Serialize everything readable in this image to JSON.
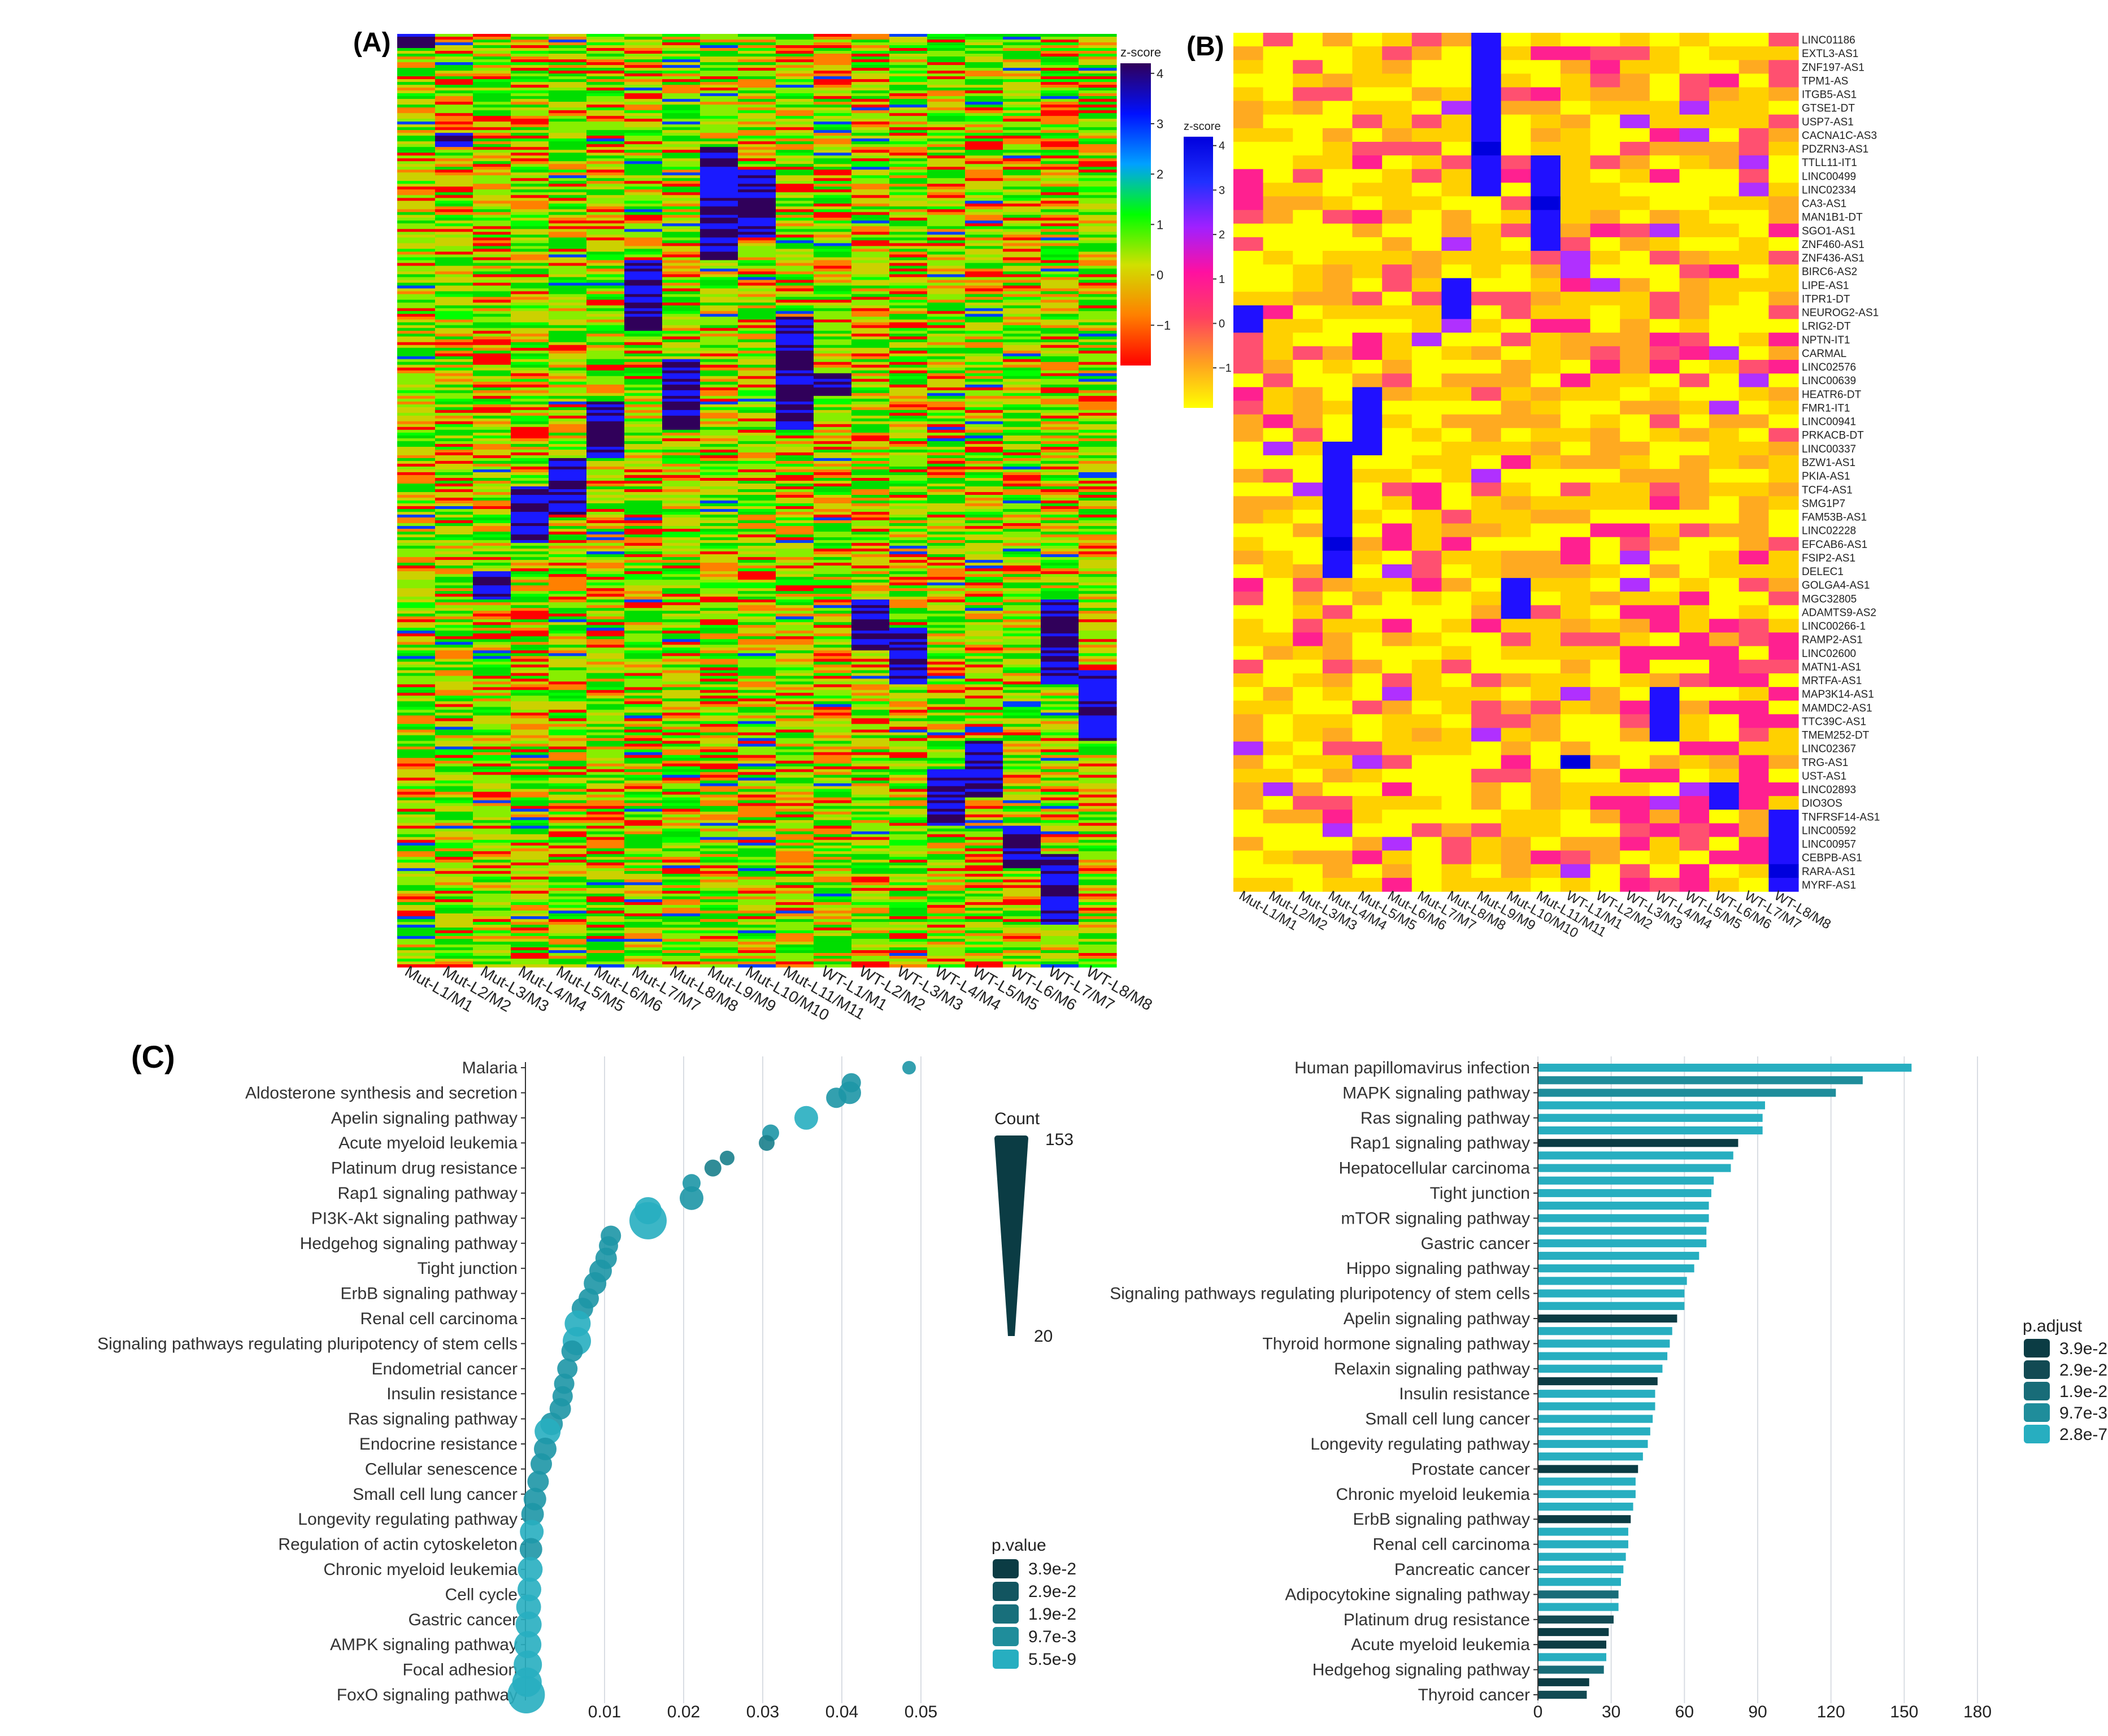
{
  "panels": {
    "a": "(A)",
    "b": "(B)",
    "c": "(C)"
  },
  "colors": {
    "heatA": [
      "#ff0000",
      "#ff8000",
      "#ccd100",
      "#88ee00",
      "#00dd00",
      "#00ff00",
      "#0040ff",
      "#1a1aff",
      "#30005a"
    ],
    "heatB": [
      "#ffff00",
      "#ffd000",
      "#ffaa20",
      "#ff5070",
      "#ff2090",
      "#b030ff",
      "#2010ff",
      "#0000dd"
    ],
    "teal_dark": "#0b3c44",
    "teal_mid": "#1d7f8c",
    "teal_light": "#27aec0"
  },
  "chart_data": [
    {
      "type": "heatmap",
      "panel": "A",
      "title": "",
      "columns": [
        "Mut-L1/M1",
        "Mut-L2/M2",
        "Mut-L3/M3",
        "Mut-L4/M4",
        "Mut-L5/M5",
        "Mut-L6/M6",
        "Mut-L7/M7",
        "Mut-L8/M8",
        "Mut-L9/M9",
        "Mut-L10/M10",
        "Mut-L11/M11",
        "WT-L1/M1",
        "WT-L2/M2",
        "WT-L3/M3",
        "WT-L4/M4",
        "WT-L5/M5",
        "WT-L6/M6",
        "WT-L7/M7",
        "WT-L8/M8"
      ],
      "colorbar": {
        "title": "z-score",
        "ticks": [
          4,
          3,
          2,
          1,
          0,
          -1
        ],
        "range": [
          -1.8,
          4.2
        ]
      }
    },
    {
      "type": "heatmap",
      "panel": "B",
      "columns": [
        "Mut-L1/M1",
        "Mut-L2/M2",
        "Mut-L3/M3",
        "Mut-L4/M4",
        "Mut-L5/M5",
        "Mut-L6/M6",
        "Mut-L7/M7",
        "Mut-L8/M8",
        "Mut-L9/M9",
        "Mut-L10/M10",
        "Mut-L11/M11",
        "WT-L1/M1",
        "WT-L2/M2",
        "WT-L3/M3",
        "WT-L4/M4",
        "WT-L5/M5",
        "WT-L6/M6",
        "WT-L7/M7",
        "WT-L8/M8"
      ],
      "rows": [
        "LINC01186",
        "EXTL3-AS1",
        "ZNF197-AS1",
        "TPM1-AS",
        "ITGB5-AS1",
        "GTSE1-DT",
        "USP7-AS1",
        "CACNA1C-AS3",
        "PDZRN3-AS1",
        "TTLL11-IT1",
        "LINC00499",
        "LINC02334",
        "CA3-AS1",
        "MAN1B1-DT",
        "SGO1-AS1",
        "ZNF460-AS1",
        "ZNF436-AS1",
        "BIRC6-AS2",
        "LIPE-AS1",
        "ITPR1-DT",
        "NEUROG2-AS1",
        "LRIG2-DT",
        "NPTN-IT1",
        "CARMAL",
        "LINC02576",
        "LINC00639",
        "HEATR6-DT",
        "FMR1-IT1",
        "LINC00941",
        "PRKACB-DT",
        "LINC00337",
        "BZW1-AS1",
        "PKIA-AS1",
        "TCF4-AS1",
        "SMG1P7",
        "FAM53B-AS1",
        "LINC02228",
        "EFCAB6-AS1",
        "FSIP2-AS1",
        "DELEC1",
        "GOLGA4-AS1",
        "MGC32805",
        "ADAMTS9-AS2",
        "LINC00266-1",
        "RAMP2-AS1",
        "LINC02600",
        "MATN1-AS1",
        "MRTFA-AS1",
        "MAP3K14-AS1",
        "MAMDC2-AS1",
        "TTC39C-AS1",
        "TMEM252-DT",
        "LINC02367",
        "TRG-AS1",
        "UST-AS1",
        "LINC02893",
        "DIO3OS",
        "TNFRSF14-AS1",
        "LINC00592",
        "LINC00957",
        "CEBPB-AS1",
        "RARA-AS1",
        "MYRF-AS1"
      ],
      "colorbar": {
        "title": "z-score",
        "ticks": [
          4,
          3,
          2,
          1,
          0,
          -1
        ],
        "range": [
          -1.9,
          4.2
        ]
      }
    },
    {
      "type": "scatter",
      "panel": "C-left",
      "categories": [
        "Malaria",
        "Aldosterone synthesis and secretion",
        "Apelin signaling pathway",
        "Acute myeloid leukemia",
        "Platinum drug resistance",
        "Rap1 signaling pathway",
        "PI3K-Akt signaling pathway",
        "Hedgehog signaling pathway",
        "Tight junction",
        "ErbB signaling pathway",
        "Renal cell carcinoma",
        "Signaling pathways regulating pluripotency of stem cells",
        "Endometrial cancer",
        "Insulin resistance",
        "Ras signaling pathway",
        "Endocrine resistance",
        "Cellular senescence",
        "Small cell lung cancer",
        "Longevity regulating pathway",
        "Regulation of actin cytoskeleton",
        "Chronic myeloid leukemia",
        "Cell cycle",
        "Gastric cancer",
        "AMPK signaling pathway",
        "Focal adhesion",
        "FoxO signaling pathway"
      ],
      "x_ticks": [
        0.01,
        0.02,
        0.03,
        0.04,
        0.05
      ],
      "xlim": [
        0,
        0.06
      ],
      "points": [
        {
          "x": 0.0485,
          "y": 0.0,
          "size": 24,
          "p": 0.012
        },
        {
          "x": 0.0412,
          "y": 0.6,
          "size": 34,
          "p": 0.009
        },
        {
          "x": 0.041,
          "y": 1.0,
          "size": 40,
          "p": 0.008
        },
        {
          "x": 0.0393,
          "y": 1.2,
          "size": 36,
          "p": 0.01
        },
        {
          "x": 0.0355,
          "y": 2.0,
          "size": 42,
          "p": 0.007
        },
        {
          "x": 0.031,
          "y": 2.6,
          "size": 30,
          "p": 0.015
        },
        {
          "x": 0.0305,
          "y": 3.0,
          "size": 28,
          "p": 0.016
        },
        {
          "x": 0.0255,
          "y": 3.6,
          "size": 26,
          "p": 0.02
        },
        {
          "x": 0.0237,
          "y": 4.0,
          "size": 30,
          "p": 0.018
        },
        {
          "x": 0.021,
          "y": 4.6,
          "size": 32,
          "p": 0.015
        },
        {
          "x": 0.021,
          "y": 5.2,
          "size": 42,
          "p": 0.009
        },
        {
          "x": 0.0155,
          "y": 5.7,
          "size": 48,
          "p": 0.006
        },
        {
          "x": 0.0155,
          "y": 6.1,
          "size": 66,
          "p": 0.001
        },
        {
          "x": 0.0108,
          "y": 6.7,
          "size": 36,
          "p": 0.012
        },
        {
          "x": 0.0105,
          "y": 7.1,
          "size": 34,
          "p": 0.012
        },
        {
          "x": 0.0102,
          "y": 7.6,
          "size": 38,
          "p": 0.011
        },
        {
          "x": 0.0095,
          "y": 8.1,
          "size": 40,
          "p": 0.01
        },
        {
          "x": 0.0088,
          "y": 8.6,
          "size": 40,
          "p": 0.009
        },
        {
          "x": 0.008,
          "y": 9.2,
          "size": 36,
          "p": 0.011
        },
        {
          "x": 0.0072,
          "y": 9.6,
          "size": 38,
          "p": 0.01
        },
        {
          "x": 0.0066,
          "y": 10.2,
          "size": 46,
          "p": 0.005
        },
        {
          "x": 0.0065,
          "y": 10.9,
          "size": 50,
          "p": 0.004
        },
        {
          "x": 0.0059,
          "y": 11.3,
          "size": 38,
          "p": 0.009
        },
        {
          "x": 0.0053,
          "y": 12.0,
          "size": 36,
          "p": 0.01
        },
        {
          "x": 0.0049,
          "y": 12.6,
          "size": 36,
          "p": 0.01
        },
        {
          "x": 0.0047,
          "y": 13.1,
          "size": 36,
          "p": 0.01
        },
        {
          "x": 0.0044,
          "y": 13.6,
          "size": 38,
          "p": 0.009
        },
        {
          "x": 0.0033,
          "y": 14.2,
          "size": 40,
          "p": 0.008
        },
        {
          "x": 0.0028,
          "y": 14.5,
          "size": 46,
          "p": 0.006
        },
        {
          "x": 0.0025,
          "y": 15.2,
          "size": 40,
          "p": 0.008
        },
        {
          "x": 0.002,
          "y": 15.8,
          "size": 38,
          "p": 0.009
        },
        {
          "x": 0.0016,
          "y": 16.5,
          "size": 38,
          "p": 0.009
        },
        {
          "x": 0.0012,
          "y": 17.2,
          "size": 40,
          "p": 0.008
        },
        {
          "x": 0.0009,
          "y": 17.8,
          "size": 40,
          "p": 0.008
        },
        {
          "x": 0.0008,
          "y": 18.5,
          "size": 42,
          "p": 0.007
        },
        {
          "x": 0.0007,
          "y": 19.2,
          "size": 40,
          "p": 0.008
        },
        {
          "x": 0.0006,
          "y": 20.0,
          "size": 44,
          "p": 0.006
        },
        {
          "x": 0.0005,
          "y": 20.8,
          "size": 42,
          "p": 0.007
        },
        {
          "x": 0.0004,
          "y": 21.5,
          "size": 44,
          "p": 0.006
        },
        {
          "x": 0.0004,
          "y": 22.2,
          "size": 46,
          "p": 0.005
        },
        {
          "x": 0.0003,
          "y": 23.0,
          "size": 48,
          "p": 0.005
        },
        {
          "x": 0.0003,
          "y": 23.8,
          "size": 50,
          "p": 0.004
        },
        {
          "x": 0.0002,
          "y": 24.5,
          "size": 52,
          "p": 0.003
        },
        {
          "x": 0.0001,
          "y": 25.0,
          "size": 66,
          "p": 0.0005
        }
      ],
      "legend_count": {
        "title": "Count",
        "max": "153",
        "min": "20"
      },
      "legend_p": {
        "title": "p.value",
        "items": [
          "3.9e-2",
          "2.9e-2",
          "1.9e-2",
          "9.7e-3",
          "5.5e-9"
        ]
      }
    },
    {
      "type": "bar",
      "panel": "C-right",
      "orientation": "horizontal",
      "categories": [
        "Human papillomavirus infection",
        "MAPK signaling pathway",
        "Ras signaling pathway",
        "Rap1 signaling pathway",
        "Hepatocellular carcinoma",
        "Tight junction",
        "mTOR signaling pathway",
        "Gastric cancer",
        "Hippo signaling pathway",
        "Signaling pathways regulating pluripotency of stem cells",
        "Apelin signaling pathway",
        "Thyroid hormone signaling pathway",
        "Relaxin signaling pathway",
        "Insulin resistance",
        "Small cell lung cancer",
        "Longevity regulating pathway",
        "Prostate cancer",
        "Chronic myeloid leukemia",
        "ErbB signaling pathway",
        "Renal cell carcinoma",
        "Pancreatic cancer",
        "Adipocytokine signaling pathway",
        "Platinum drug resistance",
        "Acute myeloid leukemia",
        "Hedgehog signaling pathway",
        "Thyroid cancer"
      ],
      "bars": [
        {
          "value": 153,
          "p": 0.0
        },
        {
          "value": 133,
          "p": 0.01
        },
        {
          "value": 122,
          "p": 0.005
        },
        {
          "value": 93,
          "p": 0.0
        },
        {
          "value": 92,
          "p": 0.0
        },
        {
          "value": 92,
          "p": 0.0
        },
        {
          "value": 82,
          "p": 0.039
        },
        {
          "value": 80,
          "p": 0.0
        },
        {
          "value": 79,
          "p": 0.0
        },
        {
          "value": 72,
          "p": 0.0
        },
        {
          "value": 71,
          "p": 0.0
        },
        {
          "value": 70,
          "p": 0.0
        },
        {
          "value": 70,
          "p": 0.0
        },
        {
          "value": 69,
          "p": 0.0
        },
        {
          "value": 69,
          "p": 0.0
        },
        {
          "value": 66,
          "p": 0.0
        },
        {
          "value": 64,
          "p": 0.0
        },
        {
          "value": 61,
          "p": 0.0
        },
        {
          "value": 60,
          "p": 0.0
        },
        {
          "value": 60,
          "p": 0.0
        },
        {
          "value": 57,
          "p": 0.039
        },
        {
          "value": 55,
          "p": 0.0
        },
        {
          "value": 54,
          "p": 0.0
        },
        {
          "value": 53,
          "p": 0.0
        },
        {
          "value": 51,
          "p": 0.0
        },
        {
          "value": 49,
          "p": 0.039
        },
        {
          "value": 48,
          "p": 0.0
        },
        {
          "value": 48,
          "p": 0.0
        },
        {
          "value": 47,
          "p": 0.0
        },
        {
          "value": 46,
          "p": 0.0
        },
        {
          "value": 45,
          "p": 0.0
        },
        {
          "value": 43,
          "p": 0.0
        },
        {
          "value": 41,
          "p": 0.039
        },
        {
          "value": 40,
          "p": 0.0
        },
        {
          "value": 40,
          "p": 0.0
        },
        {
          "value": 39,
          "p": 0.0
        },
        {
          "value": 38,
          "p": 0.039
        },
        {
          "value": 37,
          "p": 0.0
        },
        {
          "value": 37,
          "p": 0.0
        },
        {
          "value": 36,
          "p": 0.0
        },
        {
          "value": 35,
          "p": 0.0
        },
        {
          "value": 34,
          "p": 0.0
        },
        {
          "value": 33,
          "p": 0.015
        },
        {
          "value": 33,
          "p": 0.0
        },
        {
          "value": 31,
          "p": 0.03
        },
        {
          "value": 29,
          "p": 0.039
        },
        {
          "value": 28,
          "p": 0.039
        },
        {
          "value": 28,
          "p": 0.0
        },
        {
          "value": 27,
          "p": 0.02
        },
        {
          "value": 21,
          "p": 0.039
        },
        {
          "value": 20,
          "p": 0.025
        }
      ],
      "x_ticks": [
        0,
        30,
        60,
        90,
        120,
        150,
        180
      ],
      "xlim": [
        0,
        180
      ],
      "legend": {
        "title": "p.adjust",
        "items": [
          "3.9e-2",
          "2.9e-2",
          "1.9e-2",
          "9.7e-3",
          "2.8e-7"
        ]
      }
    }
  ]
}
